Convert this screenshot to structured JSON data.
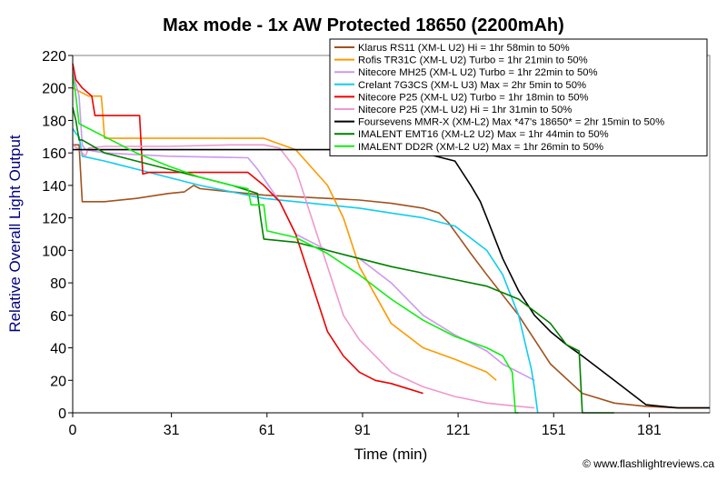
{
  "chart_data": {
    "type": "line",
    "title": "Max mode - 1x AW Protected 18650 (2200mAh)",
    "xlabel": "Time (min)",
    "ylabel": "Relative Overall Light Output",
    "xlim": [
      0,
      200
    ],
    "ylim": [
      0,
      220
    ],
    "x_ticks": [
      0,
      31,
      61,
      91,
      121,
      151,
      181
    ],
    "y_ticks": [
      0,
      20,
      40,
      60,
      80,
      100,
      120,
      140,
      160,
      180,
      200,
      220
    ],
    "grid": false,
    "legend_position": "top-right",
    "credit": "© www.flashlightreviews.ca",
    "series": [
      {
        "name": "Klarus RS11 (XM-L U2) Hi = 1hr 58min to 50%",
        "color": "#a0521e",
        "x": [
          0,
          2,
          3,
          5,
          10,
          20,
          30,
          35,
          38,
          40,
          50,
          60,
          70,
          80,
          90,
          100,
          110,
          115,
          118,
          125,
          130,
          140,
          150,
          160,
          170,
          180,
          190,
          200
        ],
        "y": [
          165,
          165,
          130,
          130,
          130,
          132,
          135,
          136,
          140,
          138,
          136,
          134,
          133,
          132,
          131,
          129,
          126,
          123,
          117,
          98,
          85,
          60,
          30,
          12,
          6,
          4,
          3,
          3
        ]
      },
      {
        "name": "Rofis TR31C (XM-L U2) Turbo = 1hr 21min to 50%",
        "color": "#ff9900",
        "x": [
          0,
          2,
          5,
          9,
          10,
          20,
          40,
          60,
          70,
          80,
          85,
          90,
          100,
          110,
          120,
          130,
          133
        ],
        "y": [
          200,
          198,
          195,
          195,
          169,
          169,
          169,
          169,
          162,
          140,
          120,
          90,
          55,
          40,
          33,
          25,
          20
        ]
      },
      {
        "name": "Nitecore MH25 (XM-L U2) Turbo = 1hr 22min to 50%",
        "color": "#cc99ee",
        "x": [
          0,
          2,
          3,
          4,
          10,
          30,
          55,
          58,
          65,
          70,
          80,
          90,
          100,
          110,
          120,
          130,
          135,
          140,
          145
        ],
        "y": [
          210,
          195,
          165,
          162,
          160,
          158,
          157,
          150,
          130,
          110,
          100,
          95,
          80,
          60,
          48,
          38,
          30,
          25,
          20
        ]
      },
      {
        "name": "Crelant 7G3CS (XM-L U3) Max = 2hr 5min to 50%",
        "color": "#11ccee",
        "x": [
          0,
          1,
          2,
          3,
          10,
          20,
          30,
          40,
          50,
          60,
          70,
          80,
          90,
          100,
          110,
          120,
          130,
          135,
          140,
          143,
          144,
          145,
          146
        ],
        "y": [
          175,
          172,
          170,
          158,
          155,
          150,
          145,
          140,
          136,
          132,
          130,
          128,
          126,
          123,
          120,
          115,
          100,
          85,
          60,
          35,
          27,
          15,
          0
        ]
      },
      {
        "name": "Nitecore P25 (XM-L U2) Turbo = 1hr 18min to 50%",
        "color": "#ee0000",
        "x": [
          0,
          1,
          3,
          6,
          7,
          13,
          14,
          21,
          22,
          24,
          35,
          45,
          55,
          60,
          65,
          70,
          75,
          80,
          85,
          90,
          95,
          100,
          105,
          110
        ],
        "y": [
          215,
          205,
          200,
          195,
          183,
          183,
          183,
          183,
          147,
          148,
          148,
          148,
          148,
          140,
          130,
          110,
          80,
          50,
          35,
          25,
          20,
          18,
          15,
          12
        ]
      },
      {
        "name": "Nitecore P25 (XM-L U2) Hi = 1hr 31min to 50%",
        "color": "#ee99cc",
        "x": [
          0,
          2,
          4,
          5,
          10,
          30,
          50,
          60,
          65,
          70,
          75,
          80,
          85,
          90,
          95,
          100,
          110,
          120,
          130,
          140,
          145
        ],
        "y": [
          165,
          162,
          158,
          163,
          164,
          164,
          165,
          165,
          163,
          150,
          120,
          90,
          60,
          45,
          35,
          25,
          16,
          10,
          6,
          4,
          3
        ]
      },
      {
        "name": "Foursevens MMR-X (XM-L2) Max *47's 18650* = 2hr 15min to 50%",
        "color": "#000000",
        "x": [
          0,
          10,
          30,
          60,
          90,
          110,
          120,
          125,
          128,
          130,
          135,
          140,
          145,
          150,
          155,
          160,
          170,
          180,
          185,
          190,
          200
        ],
        "y": [
          162,
          162,
          162,
          162,
          162,
          160,
          155,
          140,
          130,
          120,
          95,
          75,
          60,
          50,
          42,
          35,
          20,
          5,
          4,
          3,
          3
        ]
      },
      {
        "name": "IMALENT EMT16 (XM-L2 U2) Max = 1hr 44min to 50%",
        "color": "#008000",
        "x": [
          0,
          1,
          2,
          3,
          10,
          20,
          30,
          40,
          50,
          58,
          59,
          60,
          70,
          80,
          90,
          100,
          110,
          120,
          130,
          140,
          150,
          155,
          159,
          160,
          161,
          170
        ],
        "y": [
          188,
          180,
          168,
          168,
          160,
          155,
          150,
          145,
          140,
          135,
          120,
          107,
          105,
          100,
          95,
          90,
          86,
          82,
          78,
          70,
          55,
          42,
          38,
          0,
          0,
          0
        ]
      },
      {
        "name": "IMALENT DD2R (XM-L2 U2) Max = 1hr 26min to 50%",
        "color": "#11ee11",
        "x": [
          0,
          1,
          2,
          10,
          20,
          30,
          40,
          50,
          55,
          56,
          60,
          61,
          70,
          80,
          90,
          100,
          110,
          120,
          130,
          135,
          138,
          139,
          140
        ],
        "y": [
          208,
          195,
          178,
          170,
          160,
          152,
          145,
          140,
          138,
          128,
          128,
          112,
          108,
          98,
          85,
          70,
          57,
          47,
          40,
          35,
          25,
          0,
          0
        ]
      }
    ]
  }
}
